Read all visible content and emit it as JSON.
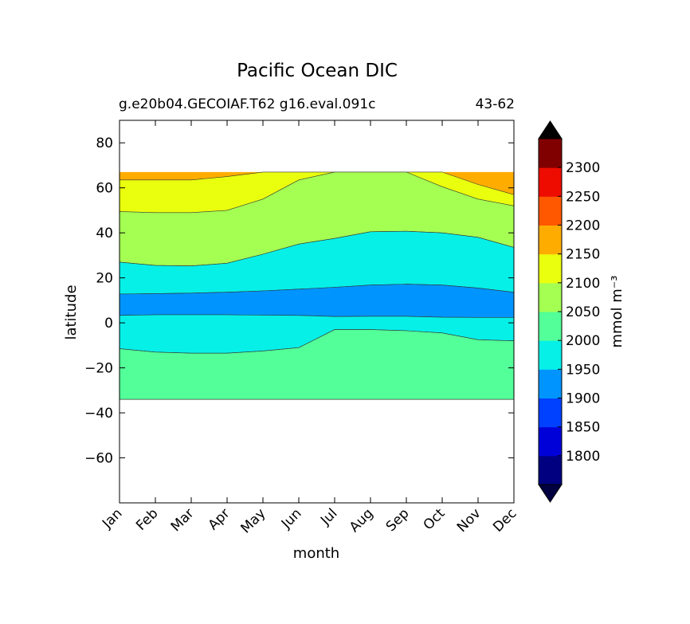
{
  "chart_data": {
    "type": "heatmap",
    "title": "Pacific Ocean DIC",
    "subtitle_left": "g.e20b04.GECOIAF.T62 g16.eval.091c",
    "subtitle_right": "43-62",
    "xlabel": "month",
    "ylabel": "latitude",
    "x_categories": [
      "Jan",
      "Feb",
      "Mar",
      "Apr",
      "May",
      "Jun",
      "Jul",
      "Aug",
      "Sep",
      "Oct",
      "Nov",
      "Dec"
    ],
    "x_tick_positions": [
      0,
      1,
      2,
      3,
      4,
      5,
      6,
      7,
      8,
      9,
      10,
      11
    ],
    "xlim": [
      0,
      11
    ],
    "ylim": [
      -80,
      90
    ],
    "yticks": [
      80,
      60,
      40,
      20,
      0,
      -20,
      -40,
      -60
    ],
    "ytick_labels": [
      "80",
      "60",
      "40",
      "20",
      "0",
      "−20",
      "−40",
      "−60"
    ],
    "data_lat_range": [
      -34,
      67
    ],
    "grid": false,
    "colorbar": {
      "label": "mmol m⁻³",
      "levels": [
        1750,
        1800,
        1850,
        1900,
        1950,
        2000,
        2050,
        2100,
        2150,
        2200,
        2250,
        2300,
        2350
      ],
      "tick_labels": [
        "1800",
        "1850",
        "1900",
        "1950",
        "2000",
        "2050",
        "2100",
        "2150",
        "2200",
        "2250",
        "2300"
      ],
      "colors": [
        "#000080",
        "#0000d8",
        "#0040ff",
        "#0094ff",
        "#06f0e8",
        "#52ff98",
        "#a4ff52",
        "#eaff0e",
        "#ffac00",
        "#ff5800",
        "#ee0c00",
        "#800000"
      ],
      "extend_low_color": "#000040",
      "extend_high_color": "#000000"
    },
    "contour_bands": [
      {
        "level": "1950-2000",
        "color": "#52ff98",
        "region": "broad south band",
        "lower_boundary_lat": [
          -34,
          -34,
          -34,
          -34,
          -34,
          -34,
          -34,
          -34,
          -34,
          -34,
          -34,
          -34
        ]
      },
      {
        "level": "1950-2000",
        "color": "#06f0e8",
        "upper_boundary_lat": [
          3.3,
          3.6,
          3.6,
          3.6,
          3.4,
          3.3,
          2.8,
          2.9,
          2.9,
          2.5,
          2.4,
          2.4
        ],
        "lower_boundary_lat": [
          -11.5,
          -13,
          -13.5,
          -13.5,
          -12.5,
          -11,
          -3,
          -3,
          -3.5,
          -4.5,
          -7.5,
          -8
        ]
      },
      {
        "level": "1900-1950",
        "color": "#0094ff",
        "upper_boundary_lat": [
          12.8,
          13,
          13.2,
          13.6,
          14.2,
          15,
          15.8,
          16.8,
          17.2,
          16.8,
          15.5,
          13.6
        ],
        "lower_boundary_lat": [
          3.3,
          3.6,
          3.6,
          3.6,
          3.4,
          3.3,
          2.8,
          2.9,
          2.9,
          2.5,
          2.4,
          2.4
        ]
      },
      {
        "level": "2000-2050",
        "color": "#52ff98",
        "upper_boundary_lat": [
          27,
          25.5,
          25.3,
          26.5,
          30.5,
          35,
          37.5,
          40.5,
          40.7,
          40,
          38,
          33.5
        ]
      },
      {
        "level": "2050-2100",
        "color": "#a4ff52",
        "upper_boundary_lat": [
          49.5,
          49,
          49,
          50,
          55,
          63.5,
          67,
          67,
          67,
          60.5,
          55,
          52
        ]
      },
      {
        "level": "2100-2150",
        "color": "#eaff0e",
        "upper_boundary_lat": [
          63.5,
          63.5,
          63.5,
          65,
          67,
          67,
          67,
          67,
          67,
          67,
          61.5,
          57
        ]
      },
      {
        "level": "2150-2200",
        "color": "#ffac00",
        "upper_boundary_lat": [
          67,
          67,
          67,
          67,
          67,
          67,
          67,
          67,
          67,
          67,
          67,
          67
        ]
      }
    ]
  }
}
